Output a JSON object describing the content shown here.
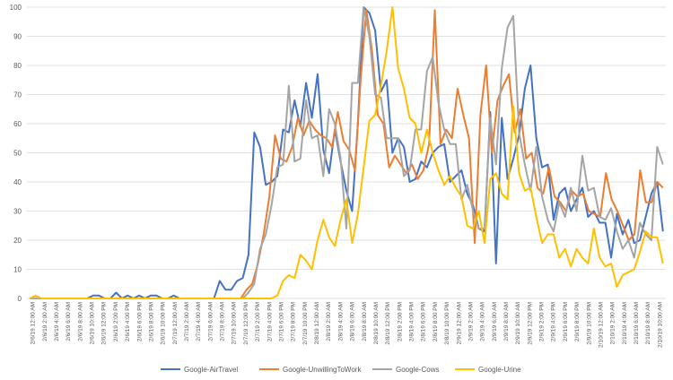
{
  "chart_data": {
    "type": "line",
    "title": "",
    "xlabel": "",
    "ylabel": "",
    "ylim": [
      0,
      100
    ],
    "yticks": [
      0,
      10,
      20,
      30,
      40,
      50,
      60,
      70,
      80,
      90,
      100
    ],
    "grid": true,
    "legend": "bottom",
    "xticks": [
      "2/6/19 12:00 AM",
      "2/6/19 2:00 AM",
      "2/6/19 4:00 AM",
      "2/6/19 6:00 AM",
      "2/6/19 8:00 AM",
      "2/6/19 10:00 AM",
      "2/6/19 12:00 PM",
      "2/6/19 2:00 PM",
      "2/6/19 4:00 PM",
      "2/6/19 6:00 PM",
      "2/6/19 8:00 PM",
      "2/6/19 10:00 PM",
      "2/7/19 12:00 AM",
      "2/7/19 2:00 AM",
      "2/7/19 4:00 AM",
      "2/7/19 6:00 AM",
      "2/7/19 8:00 AM",
      "2/7/19 10:00 AM",
      "2/7/19 12:00 PM",
      "2/7/19 2:00 PM",
      "2/7/19 4:00 PM",
      "2/7/19 6:00 PM",
      "2/7/19 8:00 PM",
      "2/7/19 10:00 PM",
      "2/8/19 12:00 AM",
      "2/8/19 2:00 AM",
      "2/8/19 4:00 AM",
      "2/8/19 6:00 AM",
      "2/8/19 8:00 AM",
      "2/8/19 10:00 AM",
      "2/8/19 12:00 PM",
      "2/8/19 2:00 PM",
      "2/8/19 4:00 PM",
      "2/8/19 6:00 PM",
      "2/8/19 8:00 PM",
      "2/8/19 10:00 PM",
      "2/9/19 12:00 AM",
      "2/9/19 2:00 AM",
      "2/9/19 4:00 AM",
      "2/9/19 6:00 AM",
      "2/9/19 8:00 AM",
      "2/9/19 10:00 AM",
      "2/9/19 12:00 PM",
      "2/9/19 2:00 PM",
      "2/9/19 4:00 PM",
      "2/9/19 6:00 PM",
      "2/9/19 8:00 PM",
      "2/9/19 10:00 PM",
      "2/10/19 12:00 AM",
      "2/10/19 2:00 AM",
      "2/10/19 4:00 AM",
      "2/10/19 6:00 AM",
      "2/10/19 8:00 AM",
      "2/10/19 10:00 AM"
    ],
    "series": [
      {
        "name": "Google-AirTravel",
        "color": "#4472c4",
        "values": [
          0,
          0,
          0,
          0,
          0,
          0,
          0,
          0,
          0,
          0,
          0,
          1,
          1,
          0,
          0,
          2,
          0,
          1,
          0,
          1,
          0,
          1,
          1,
          0,
          0,
          1,
          0,
          0,
          0,
          0,
          0,
          0,
          0,
          6,
          3,
          3,
          6,
          7,
          15,
          57,
          52,
          39,
          40,
          42,
          58,
          57,
          68,
          59,
          74,
          62,
          77,
          51,
          43,
          58,
          47,
          37,
          30,
          60,
          100,
          98,
          92,
          71,
          75,
          50,
          55,
          52,
          40,
          41,
          47,
          45,
          50,
          52,
          53,
          40,
          42,
          44,
          36,
          32,
          24,
          23,
          64,
          12,
          62,
          41,
          48,
          56,
          72,
          80,
          55,
          45,
          46,
          27,
          36,
          38,
          30,
          34,
          38,
          28,
          30,
          26,
          26,
          14,
          29,
          22,
          27,
          19,
          20,
          28,
          36,
          40,
          23
        ]
      },
      {
        "name": "Google-UnwillingToWork",
        "color": "#ed7d31",
        "values": [
          0,
          0,
          0,
          0,
          0,
          0,
          0,
          0,
          0,
          0,
          0,
          0,
          0,
          0,
          0,
          0,
          0,
          0,
          0,
          0,
          0,
          0,
          0,
          0,
          0,
          0,
          0,
          0,
          0,
          0,
          0,
          0,
          0,
          0,
          0,
          0,
          0,
          0,
          3,
          5,
          12,
          22,
          35,
          56,
          48,
          47,
          52,
          62,
          56,
          61,
          58,
          56,
          55,
          52,
          64,
          54,
          51,
          44,
          75,
          99,
          85,
          63,
          60,
          45,
          49,
          46,
          43,
          46,
          41,
          44,
          53,
          99,
          53,
          58,
          55,
          72,
          63,
          55,
          19,
          63,
          80,
          50,
          68,
          73,
          77,
          57,
          65,
          48,
          50,
          38,
          36,
          45,
          35,
          33,
          30,
          37,
          35,
          36,
          30,
          29,
          28,
          43,
          34,
          30,
          25,
          20,
          22,
          44,
          33,
          33,
          40,
          38
        ]
      },
      {
        "name": "Google-Cows",
        "color": "#a5a5a5",
        "values": [
          0,
          0,
          0,
          0,
          0,
          0,
          0,
          0,
          0,
          0,
          0,
          0,
          0,
          0,
          0,
          0,
          0,
          0,
          0,
          0,
          0,
          0,
          0,
          0,
          0,
          0,
          0,
          0,
          0,
          0,
          0,
          0,
          0,
          0,
          0,
          0,
          0,
          0,
          2,
          5,
          17,
          22,
          32,
          45,
          46,
          73,
          47,
          48,
          68,
          55,
          56,
          42,
          65,
          60,
          48,
          24,
          74,
          74,
          100,
          90,
          70,
          69,
          55,
          55,
          55,
          42,
          44,
          58,
          58,
          78,
          83,
          67,
          58,
          53,
          53,
          34,
          39,
          30,
          24,
          24,
          62,
          46,
          79,
          93,
          97,
          57,
          46,
          37,
          52,
          35,
          27,
          23,
          33,
          28,
          38,
          30,
          49,
          37,
          38,
          28,
          27,
          31,
          23,
          17,
          20,
          14,
          26,
          22,
          20,
          52,
          46
        ]
      },
      {
        "name": "Google-Urine",
        "color": "#ffc000",
        "values": [
          0,
          1,
          0,
          0,
          0,
          0,
          0,
          0,
          0,
          0,
          0,
          0,
          0,
          0,
          0,
          0,
          0,
          0,
          0,
          0,
          0,
          0,
          0,
          0,
          0,
          0,
          0,
          0,
          0,
          0,
          0,
          0,
          0,
          0,
          0,
          0,
          0,
          0,
          0,
          0,
          0,
          0,
          0,
          1,
          6,
          8,
          7,
          15,
          13,
          10,
          20,
          27,
          21,
          18,
          27,
          34,
          19,
          29,
          45,
          61,
          63,
          73,
          85,
          100,
          79,
          72,
          62,
          60,
          50,
          58,
          50,
          44,
          39,
          42,
          38,
          35,
          25,
          24,
          30,
          19,
          41,
          43,
          36,
          34,
          66,
          43,
          37,
          38,
          28,
          19,
          22,
          22,
          14,
          17,
          11,
          17,
          14,
          12,
          24,
          14,
          11,
          12,
          4,
          8,
          9,
          10,
          16,
          23,
          21,
          21,
          12
        ]
      }
    ]
  }
}
